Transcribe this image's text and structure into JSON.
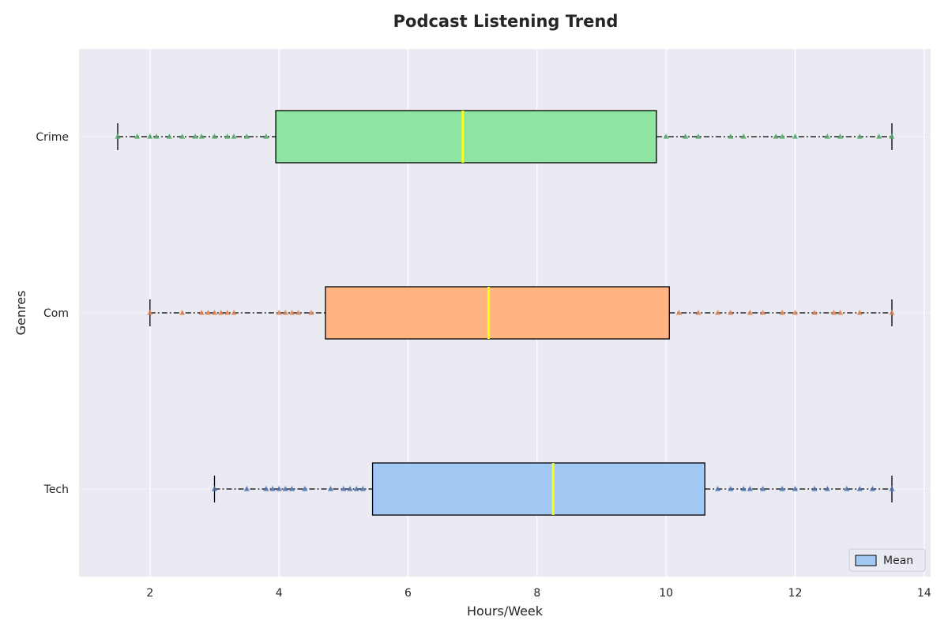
{
  "chart_data": {
    "type": "boxplot",
    "title": "Podcast Listening Trend",
    "xlabel": "Hours/Week",
    "ylabel": "Genres",
    "xlim": [
      0.9,
      14.1
    ],
    "xticks": [
      2,
      4,
      6,
      8,
      10,
      12,
      14
    ],
    "orientation": "horizontal",
    "grid": true,
    "legend": {
      "placement": "bottom-right",
      "entries": [
        {
          "label": "Mean",
          "color": "#a1c9f4"
        }
      ]
    },
    "categories": [
      "Tech",
      "Com",
      "Crime"
    ],
    "series": [
      {
        "name": "Tech",
        "color": "#a1c9f4",
        "point_color": "#4c72b0",
        "whisker_low": 3.0,
        "q1": 5.45,
        "median": 8.25,
        "q3": 10.6,
        "whisker_high": 13.5,
        "points": [
          3.0,
          3.5,
          3.8,
          3.9,
          4.0,
          4.1,
          4.2,
          4.4,
          4.8,
          5.0,
          5.1,
          5.2,
          5.3,
          10.8,
          11.0,
          11.2,
          11.3,
          11.5,
          11.8,
          12.0,
          12.3,
          12.5,
          12.8,
          13.0,
          13.2,
          13.5
        ]
      },
      {
        "name": "Com",
        "color": "#ffb482",
        "point_color": "#dd8452",
        "whisker_low": 2.0,
        "q1": 4.72,
        "median": 7.25,
        "q3": 10.05,
        "whisker_high": 13.5,
        "points": [
          2.0,
          2.5,
          2.8,
          2.9,
          3.0,
          3.1,
          3.2,
          3.3,
          4.0,
          4.1,
          4.2,
          4.3,
          4.5,
          10.2,
          10.5,
          10.8,
          11.0,
          11.3,
          11.5,
          11.8,
          12.0,
          12.3,
          12.6,
          12.7,
          13.0,
          13.5
        ]
      },
      {
        "name": "Crime",
        "color": "#8de5a1",
        "point_color": "#55a868",
        "whisker_low": 1.5,
        "q1": 3.95,
        "median": 6.85,
        "q3": 9.85,
        "whisker_high": 13.5,
        "points": [
          1.5,
          1.8,
          2.0,
          2.1,
          2.3,
          2.5,
          2.7,
          2.8,
          3.0,
          3.2,
          3.3,
          3.5,
          3.8,
          10.0,
          10.3,
          10.5,
          11.0,
          11.2,
          11.7,
          11.8,
          12.0,
          12.5,
          12.7,
          13.0,
          13.3,
          13.5
        ]
      }
    ],
    "median_color": "#ffff14"
  }
}
